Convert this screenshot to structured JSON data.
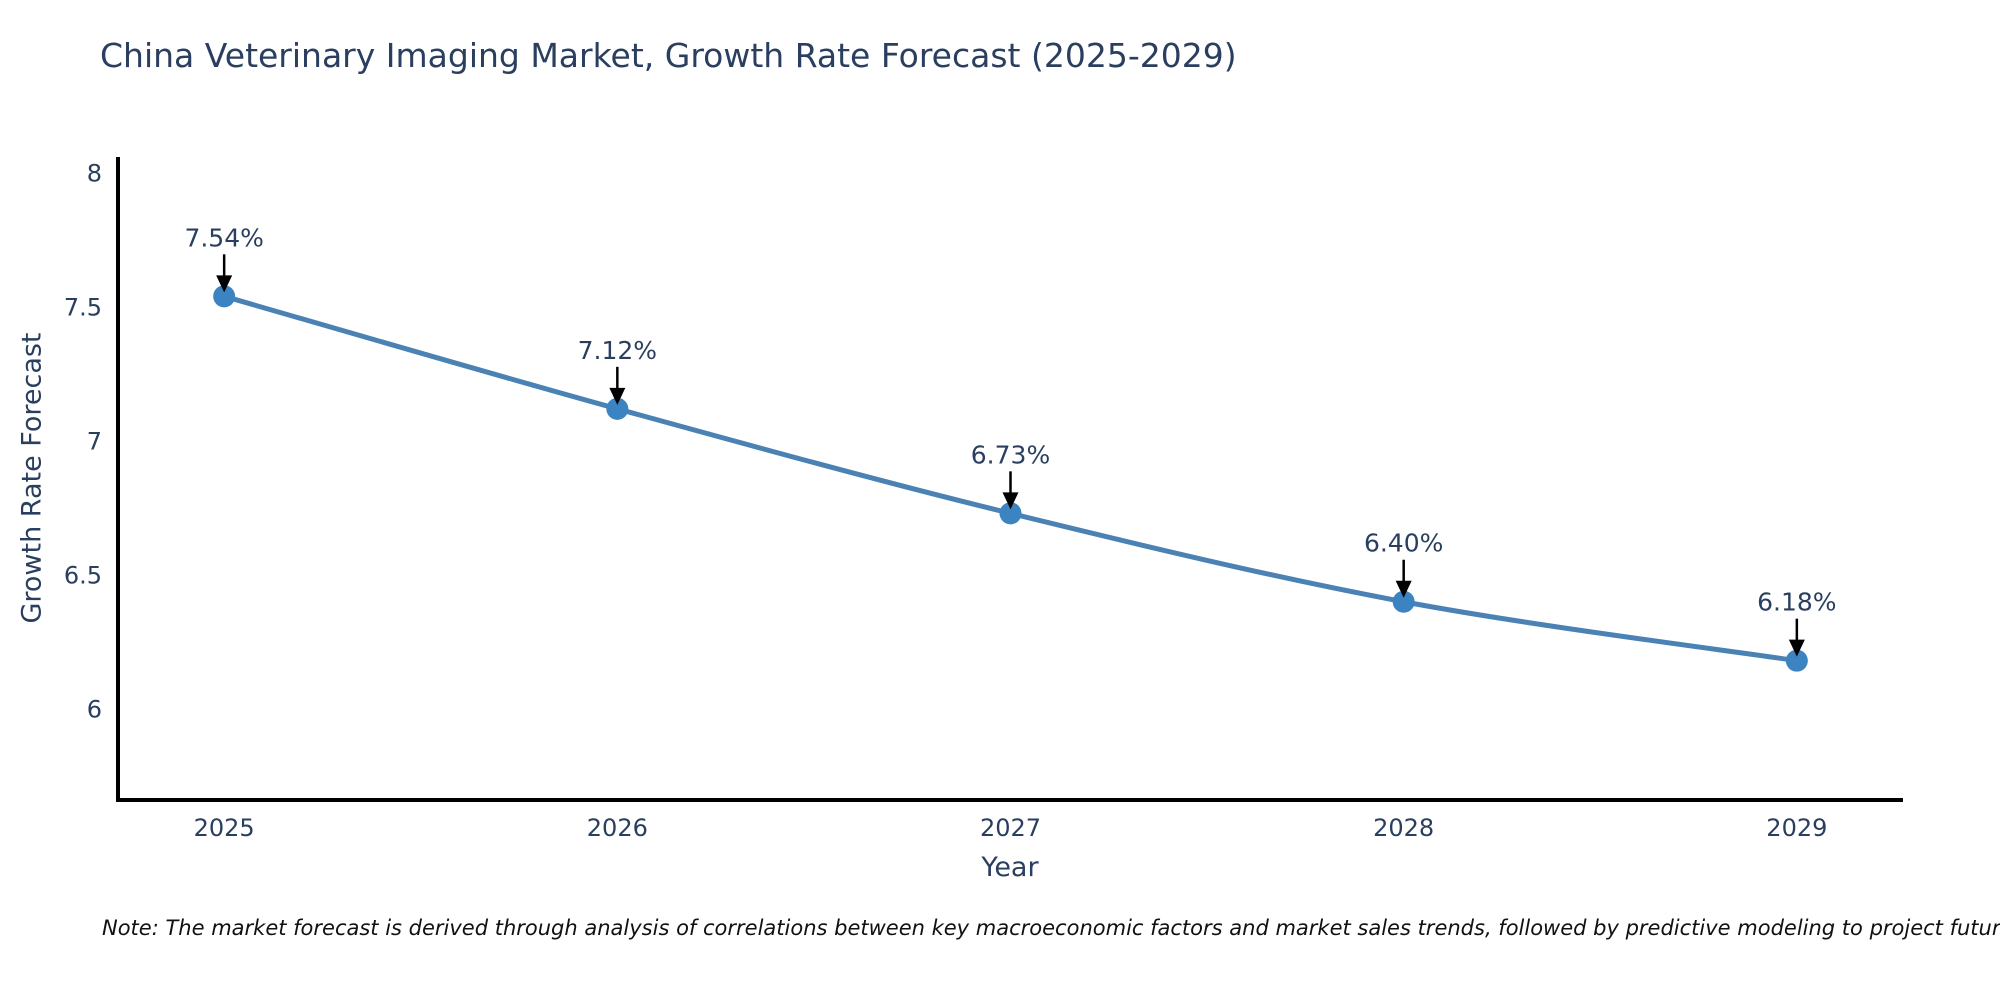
{
  "title": "China Veterinary Imaging Market, Growth Rate Forecast (2025-2029)",
  "note": "Note: The market forecast is derived through analysis of correlations between key macroeconomic factors and market sales trends, followed by predictive modeling to project future sales",
  "chart_data": {
    "type": "line",
    "title": "China Veterinary Imaging Market, Growth Rate Forecast (2025-2029)",
    "x": [
      2025,
      2026,
      2027,
      2028,
      2029
    ],
    "values": [
      7.54,
      7.12,
      6.73,
      6.4,
      6.18
    ],
    "point_labels": [
      "7.54%",
      "7.12%",
      "6.73%",
      "6.40%",
      "6.18%"
    ],
    "x_tick_labels": [
      "2025",
      "2026",
      "2027",
      "2028",
      "2029"
    ],
    "y_ticks": [
      6,
      6.5,
      7,
      7.5,
      8
    ],
    "y_tick_labels": [
      "6",
      "6.5",
      "7",
      "7.5",
      "8"
    ],
    "xlabel": "Year",
    "ylabel": "Growth Rate Forecast",
    "xlim": [
      2024.73,
      2029.27
    ],
    "ylim": [
      5.66,
      8.06
    ],
    "grid": false,
    "legend": false,
    "colors": {
      "line": "#4a82b4",
      "marker": "#3c83c1",
      "axis": "#000000",
      "tick_text": "#2a3f5f",
      "annotation_text": "#2a3f5f",
      "annotation_arrow": "#000000"
    }
  }
}
